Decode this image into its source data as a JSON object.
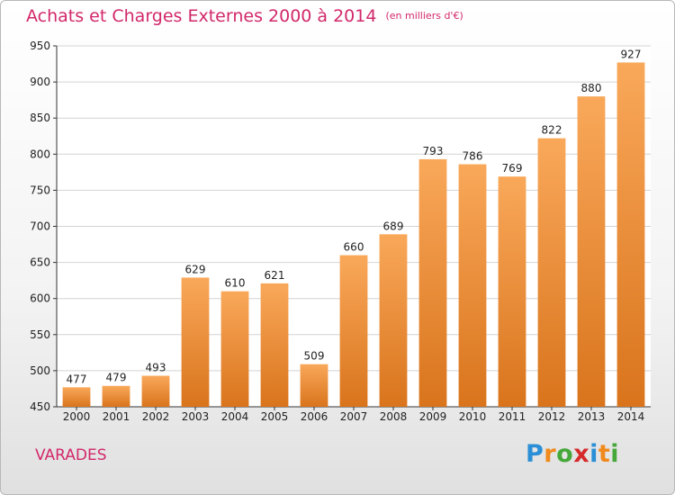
{
  "title": "Achats et Charges Externes 2000 à 2014",
  "unit": "(en milliers d'€)",
  "place": "VARADES",
  "logo": {
    "letters": [
      "P",
      "r",
      "o",
      "x",
      "i",
      "t",
      "i"
    ],
    "colors": [
      "#2a8fd6",
      "#f08a1c",
      "#46a83a",
      "#d62a2a",
      "#2a8fd6",
      "#f08a1c",
      "#46a83a"
    ]
  },
  "colors": {
    "title": "#d2286a",
    "bar_top": "#f9a85a",
    "bar_bottom": "#d9741c",
    "grid": "#d4d4d4",
    "axis": "#333333"
  },
  "chart_data": {
    "type": "bar",
    "title": "Achats et Charges Externes 2000 à 2014",
    "xlabel": "",
    "ylabel": "",
    "categories": [
      "2000",
      "2001",
      "2002",
      "2003",
      "2004",
      "2005",
      "2006",
      "2007",
      "2008",
      "2009",
      "2010",
      "2011",
      "2012",
      "2013",
      "2014"
    ],
    "values": [
      477,
      479,
      493,
      629,
      610,
      621,
      509,
      660,
      689,
      793,
      786,
      769,
      822,
      880,
      927
    ],
    "ylim": [
      450,
      950
    ],
    "yticks": [
      450,
      500,
      550,
      600,
      650,
      700,
      750,
      800,
      850,
      900,
      950
    ],
    "grid": true,
    "legend": "none"
  }
}
